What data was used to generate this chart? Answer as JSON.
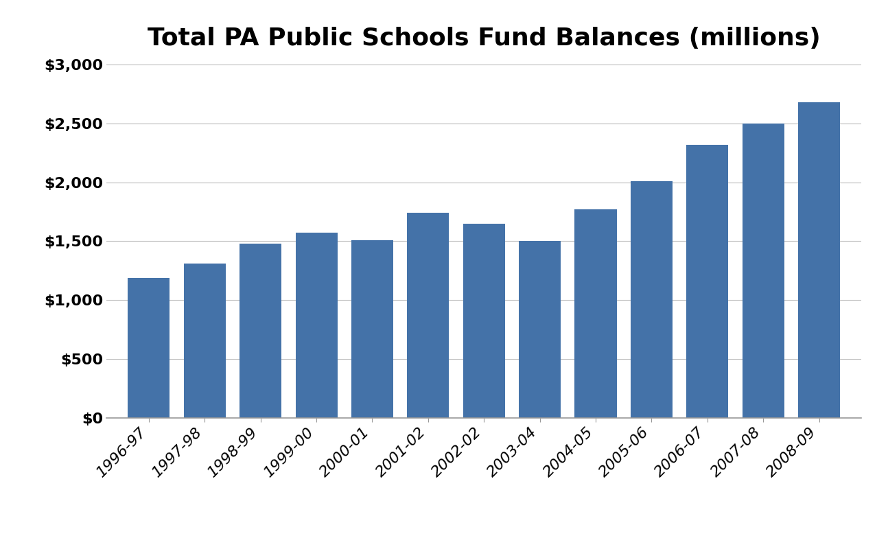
{
  "title": "Total PA Public Schools Fund Balances (millions)",
  "categories": [
    "1996-97",
    "1997-98",
    "1998-99",
    "1999-00",
    "2000-01",
    "2001-02",
    "2002-02",
    "2003-04",
    "2004-05",
    "2005-06",
    "2006-07",
    "2007-08",
    "2008-09"
  ],
  "values": [
    1190,
    1310,
    1480,
    1575,
    1510,
    1740,
    1650,
    1500,
    1770,
    2010,
    2320,
    2500,
    2680
  ],
  "bar_color": "#4472a8",
  "ylim": [
    0,
    3000
  ],
  "yticks": [
    0,
    500,
    1000,
    1500,
    2000,
    2500,
    3000
  ],
  "ytick_labels": [
    "$0",
    "$500",
    "$1,000",
    "$1,500",
    "$2,000",
    "$2,500",
    "$3,000"
  ],
  "title_fontsize": 26,
  "tick_fontsize": 16,
  "background_color": "#ffffff",
  "grid_color": "#bbbbbb"
}
